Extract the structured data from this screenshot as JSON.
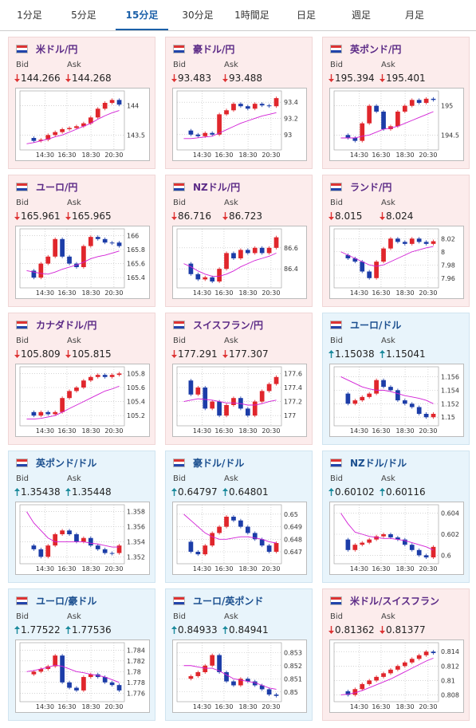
{
  "tabs": [
    "1分足",
    "5分足",
    "15分足",
    "30分足",
    "1時間足",
    "日足",
    "週足",
    "月足"
  ],
  "active_tab": 2,
  "labels": {
    "bid": "Bid",
    "ask": "Ask"
  },
  "time_labels": [
    "14:30",
    "16:30",
    "18:30",
    "20:30"
  ],
  "colors": {
    "up_candle": "#e0262c",
    "down_candle": "#1c3da8",
    "ma": "#d21fd6"
  },
  "cards": [
    {
      "pair": "米ドル/円",
      "direction": "down",
      "bid": 144.266,
      "ask": 144.268,
      "chart": {
        "type": "candlestick",
        "ylim": [
          143.3,
          144.2
        ],
        "yticks": [
          143.5,
          144
        ],
        "values": [
          143.45,
          143.4,
          143.42,
          143.5,
          143.55,
          143.6,
          143.62,
          143.65,
          143.7,
          143.8,
          143.95,
          144.05,
          144.1,
          144.02
        ],
        "ma": [
          143.35,
          143.37,
          143.4,
          143.43,
          143.47,
          143.5,
          143.55,
          143.6,
          143.65,
          143.7,
          143.77,
          143.83,
          143.88,
          143.92
        ]
      }
    },
    {
      "pair": "豪ドル/円",
      "direction": "down",
      "bid": 93.483,
      "ask": 93.488,
      "chart": {
        "type": "candlestick",
        "ylim": [
          92.85,
          93.5
        ],
        "yticks": [
          93,
          93.2,
          93.4
        ],
        "values": [
          93.05,
          93.0,
          92.98,
          93.02,
          93.0,
          93.25,
          93.3,
          93.38,
          93.35,
          93.32,
          93.38,
          93.36,
          93.35,
          93.45
        ],
        "ma": [
          92.95,
          92.95,
          92.96,
          92.97,
          92.98,
          93.02,
          93.06,
          93.1,
          93.14,
          93.17,
          93.2,
          93.23,
          93.25,
          93.27
        ]
      }
    },
    {
      "pair": "英ポンド/円",
      "direction": "down",
      "bid": 195.394,
      "ask": 195.401,
      "chart": {
        "type": "candlestick",
        "ylim": [
          194.3,
          195.2
        ],
        "yticks": [
          194.5,
          195
        ],
        "values": [
          194.5,
          194.45,
          194.4,
          194.7,
          195.0,
          194.9,
          194.6,
          194.65,
          194.9,
          195.0,
          195.1,
          195.05,
          195.12,
          195.1
        ],
        "ma": [
          194.45,
          194.45,
          194.45,
          194.48,
          194.5,
          194.55,
          194.6,
          194.62,
          194.65,
          194.7,
          194.75,
          194.8,
          194.85,
          194.9
        ]
      }
    },
    {
      "pair": "ユーロ/円",
      "direction": "down",
      "bid": 165.961,
      "ask": 165.965,
      "chart": {
        "type": "candlestick",
        "ylim": [
          165.3,
          166.05
        ],
        "yticks": [
          165.4,
          165.6,
          165.8,
          166
        ],
        "values": [
          165.5,
          165.4,
          165.6,
          165.7,
          165.95,
          165.7,
          165.6,
          165.55,
          165.85,
          165.98,
          165.95,
          165.9,
          165.9,
          165.85
        ],
        "ma": [
          165.5,
          165.48,
          165.46,
          165.45,
          165.48,
          165.52,
          165.55,
          165.58,
          165.62,
          165.67,
          165.7,
          165.72,
          165.75,
          165.78
        ]
      }
    },
    {
      "pair": "NZドル/円",
      "direction": "down",
      "bid": 86.716,
      "ask": 86.723,
      "chart": {
        "type": "candlestick",
        "ylim": [
          86.25,
          86.75
        ],
        "yticks": [
          86.4,
          86.6
        ],
        "values": [
          86.45,
          86.35,
          86.3,
          86.32,
          86.28,
          86.4,
          86.55,
          86.5,
          86.58,
          86.55,
          86.6,
          86.55,
          86.6,
          86.7
        ],
        "ma": [
          86.45,
          86.42,
          86.38,
          86.35,
          86.33,
          86.33,
          86.35,
          86.38,
          86.42,
          86.45,
          86.48,
          86.5,
          86.52,
          86.55
        ]
      }
    },
    {
      "pair": "ランド/円",
      "direction": "down",
      "bid": 8.015,
      "ask": 8.024,
      "chart": {
        "type": "candlestick",
        "ylim": [
          7.95,
          8.03
        ],
        "yticks": [
          7.96,
          7.98,
          8,
          8.02
        ],
        "values": [
          7.995,
          7.99,
          7.985,
          7.97,
          7.96,
          7.985,
          8.005,
          8.02,
          8.015,
          8.012,
          8.02,
          8.015,
          8.012,
          8.016
        ],
        "ma": [
          8.0,
          7.995,
          7.99,
          7.985,
          7.98,
          7.978,
          7.98,
          7.985,
          7.99,
          7.995,
          8.0,
          8.003,
          8.006,
          8.008
        ]
      }
    },
    {
      "pair": "カナダドル/円",
      "direction": "down",
      "bid": 105.809,
      "ask": 105.815,
      "chart": {
        "type": "candlestick",
        "ylim": [
          105.1,
          105.85
        ],
        "yticks": [
          105.2,
          105.4,
          105.6,
          105.8
        ],
        "values": [
          105.25,
          105.2,
          105.25,
          105.22,
          105.25,
          105.45,
          105.55,
          105.6,
          105.7,
          105.75,
          105.78,
          105.75,
          105.78,
          105.8
        ],
        "ma": [
          105.15,
          105.15,
          105.16,
          105.18,
          105.2,
          105.25,
          105.3,
          105.35,
          105.4,
          105.45,
          105.5,
          105.55,
          105.58,
          105.62
        ]
      }
    },
    {
      "pair": "スイスフラン/円",
      "direction": "down",
      "bid": 177.291,
      "ask": 177.307,
      "chart": {
        "type": "candlestick",
        "ylim": [
          176.9,
          177.65
        ],
        "yticks": [
          177,
          177.2,
          177.4,
          177.6
        ],
        "values": [
          177.5,
          177.3,
          177.4,
          177.1,
          177.2,
          177.0,
          177.15,
          177.25,
          177.1,
          177.0,
          177.2,
          177.35,
          177.45,
          177.55
        ],
        "ma": [
          177.2,
          177.22,
          177.24,
          177.23,
          177.22,
          177.2,
          177.18,
          177.18,
          177.17,
          177.15,
          177.15,
          177.17,
          177.2,
          177.22
        ]
      }
    },
    {
      "pair": "ユーロ/ドル",
      "direction": "up",
      "bid": 1.15038,
      "ask": 1.15041,
      "chart": {
        "type": "candlestick",
        "ylim": [
          1.1492,
          1.157
        ],
        "yticks": [
          1.15,
          1.152,
          1.154,
          1.156
        ],
        "values": [
          1.1535,
          1.152,
          1.1525,
          1.153,
          1.1535,
          1.1555,
          1.1545,
          1.154,
          1.1525,
          1.152,
          1.1515,
          1.1505,
          1.15,
          1.1505
        ],
        "ma": [
          1.156,
          1.1555,
          1.155,
          1.1545,
          1.1542,
          1.154,
          1.154,
          1.1538,
          1.1535,
          1.1532,
          1.153,
          1.1528,
          1.1525,
          1.152
        ]
      }
    },
    {
      "pair": "英ポンド/ドル",
      "direction": "up",
      "bid": 1.35438,
      "ask": 1.35448,
      "chart": {
        "type": "candlestick",
        "ylim": [
          1.3515,
          1.3585
        ],
        "yticks": [
          1.352,
          1.354,
          1.356,
          1.358
        ],
        "values": [
          1.3535,
          1.353,
          1.352,
          1.3535,
          1.355,
          1.3555,
          1.355,
          1.354,
          1.3545,
          1.3535,
          1.353,
          1.3525,
          1.3525,
          1.3535
        ],
        "ma": [
          1.358,
          1.3565,
          1.3555,
          1.3545,
          1.354,
          1.354,
          1.354,
          1.354,
          1.354,
          1.3538,
          1.3537,
          1.3535,
          1.3533,
          1.3533
        ]
      }
    },
    {
      "pair": "豪ドル/ドル",
      "direction": "up",
      "bid": 0.64797,
      "ask": 0.64801,
      "chart": {
        "type": "candlestick",
        "ylim": [
          0.6463,
          0.6505
        ],
        "yticks": [
          0.647,
          0.648,
          0.649,
          0.65
        ],
        "values": [
          0.6478,
          0.647,
          0.6468,
          0.6475,
          0.6485,
          0.649,
          0.6498,
          0.6495,
          0.649,
          0.6485,
          0.648,
          0.6475,
          0.647,
          0.6477
        ],
        "ma": [
          0.65,
          0.6495,
          0.649,
          0.6485,
          0.6482,
          0.648,
          0.648,
          0.6481,
          0.6482,
          0.6482,
          0.6481,
          0.648,
          0.6478,
          0.6477
        ]
      }
    },
    {
      "pair": "NZドル/ドル",
      "direction": "up",
      "bid": 0.60102,
      "ask": 0.60116,
      "chart": {
        "type": "candlestick",
        "ylim": [
          0.5995,
          0.6045
        ],
        "yticks": [
          0.6,
          0.602,
          0.604
        ],
        "values": [
          0.6015,
          0.6005,
          0.601,
          0.6012,
          0.6015,
          0.6018,
          0.602,
          0.6017,
          0.6015,
          0.601,
          0.6005,
          0.6,
          0.5998,
          0.6008
        ],
        "ma": [
          0.604,
          0.603,
          0.6022,
          0.602,
          0.6018,
          0.6017,
          0.6016,
          0.6016,
          0.6015,
          0.6014,
          0.6012,
          0.601,
          0.6008,
          0.6005
        ]
      }
    },
    {
      "pair": "ユーロ/豪ドル",
      "direction": "up",
      "bid": 1.77522,
      "ask": 1.77536,
      "chart": {
        "type": "candlestick",
        "ylim": [
          1.775,
          1.7848
        ],
        "yticks": [
          1.776,
          1.778,
          1.78,
          1.782,
          1.784
        ],
        "values": [
          1.7795,
          1.78,
          1.7805,
          1.781,
          1.783,
          1.778,
          1.777,
          1.7765,
          1.779,
          1.7795,
          1.779,
          1.778,
          1.7775,
          1.7765
        ],
        "ma": [
          1.78,
          1.7802,
          1.7805,
          1.7808,
          1.7812,
          1.781,
          1.7805,
          1.78,
          1.7798,
          1.7795,
          1.7793,
          1.779,
          1.7785,
          1.778
        ]
      }
    },
    {
      "pair": "ユーロ/英ポンド",
      "direction": "up",
      "bid": 0.84933,
      "ask": 0.84941,
      "chart": {
        "type": "candlestick",
        "ylim": [
          0.8495,
          0.8535
        ],
        "yticks": [
          0.85,
          0.851,
          0.852,
          0.853
        ],
        "values": [
          0.851,
          0.8512,
          0.8515,
          0.852,
          0.8528,
          0.8515,
          0.8508,
          0.8505,
          0.851,
          0.8508,
          0.8505,
          0.8502,
          0.8498,
          0.8497
        ],
        "ma": [
          0.852,
          0.852,
          0.8519,
          0.8518,
          0.8518,
          0.8516,
          0.8513,
          0.851,
          0.8509,
          0.8508,
          0.8507,
          0.8505,
          0.8503,
          0.8502
        ]
      }
    },
    {
      "pair": "米ドル/スイスフラン",
      "direction": "down",
      "bid": 0.81362,
      "ask": 0.81377,
      "chart": {
        "type": "candlestick",
        "ylim": [
          0.8075,
          0.8148
        ],
        "yticks": [
          0.808,
          0.81,
          0.812,
          0.814
        ],
        "values": [
          0.8085,
          0.808,
          0.8088,
          0.8095,
          0.81,
          0.8105,
          0.811,
          0.8115,
          0.812,
          0.8125,
          0.813,
          0.8135,
          0.814,
          0.8138
        ],
        "ma": [
          0.808,
          0.8081,
          0.8083,
          0.8086,
          0.809,
          0.8094,
          0.8098,
          0.8102,
          0.8107,
          0.8112,
          0.8117,
          0.8122,
          0.8127,
          0.8131
        ]
      }
    }
  ]
}
